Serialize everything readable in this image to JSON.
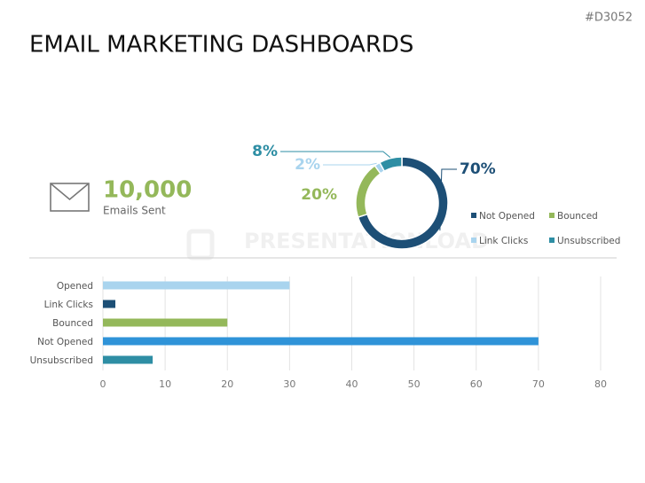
{
  "header": {
    "title": "EMAIL MARKETING DASHBOARDS",
    "code": "#D3052"
  },
  "stat": {
    "value": "10,000",
    "label": "Emails Sent"
  },
  "watermark": "PRESENTATIONLOAD",
  "chart_data": [
    {
      "type": "pie",
      "donut": true,
      "categories": [
        "Not Opened",
        "Bounced",
        "Link Clicks",
        "Unsubscribed"
      ],
      "values": [
        70,
        20,
        2,
        8
      ],
      "value_labels": [
        "70%",
        "20%",
        "2%",
        "8%"
      ],
      "colors": [
        "#1d4f76",
        "#94b85a",
        "#a9d4ee",
        "#2e8ea4"
      ],
      "legend": "bottom-right"
    },
    {
      "type": "bar",
      "horizontal": true,
      "categories": [
        "Opened",
        "Link Clicks",
        "Bounced",
        "Not Opened",
        "Unsubscribed"
      ],
      "values": [
        30,
        2,
        20,
        70,
        8
      ],
      "colors": [
        "#a9d4ee",
        "#1d4f76",
        "#94b85a",
        "#2f93d8",
        "#2e8ea4"
      ],
      "xlim": [
        0,
        80
      ],
      "xticks": [
        0,
        10,
        20,
        30,
        40,
        50,
        60,
        70,
        80
      ],
      "grid": true
    }
  ]
}
